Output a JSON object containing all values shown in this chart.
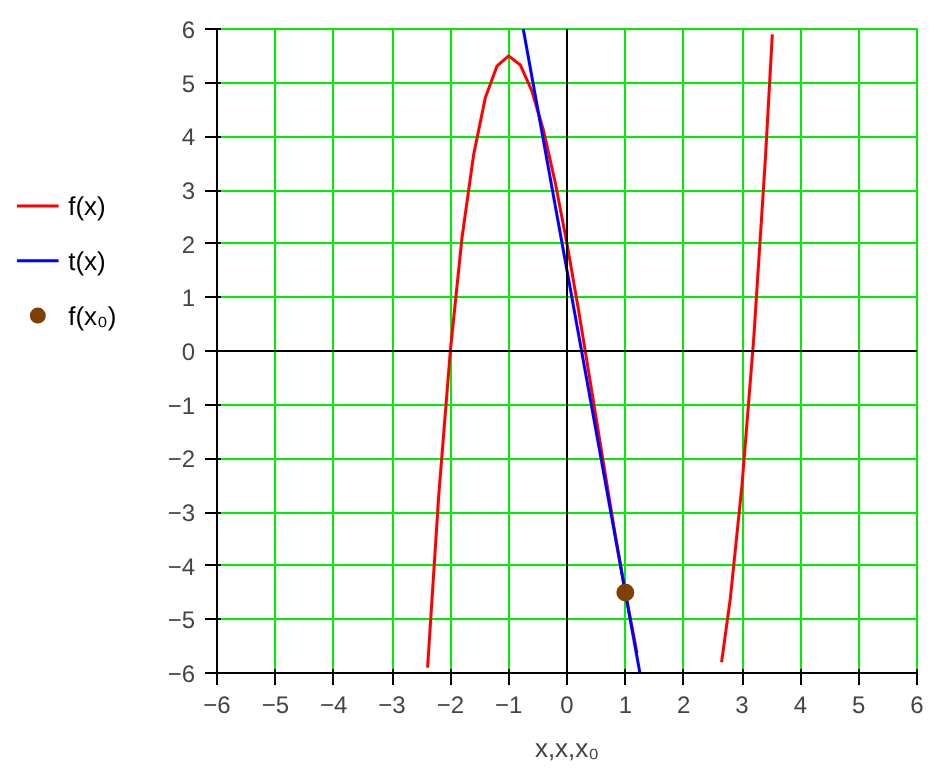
{
  "chart_data": {
    "type": "line",
    "xlabel": "x,x,x₀",
    "xlim": [
      -6,
      6
    ],
    "ylim": [
      -6,
      6
    ],
    "xticks": [
      -6,
      -5,
      -4,
      -3,
      -2,
      -1,
      0,
      1,
      2,
      3,
      4,
      5,
      6
    ],
    "yticks": [
      -6,
      -5,
      -4,
      -3,
      -2,
      -1,
      0,
      1,
      2,
      3,
      4,
      5,
      6
    ],
    "grid": true,
    "legend": "left",
    "line_style": "solid",
    "series": [
      {
        "name": "f(x)",
        "color": "#ff0000",
        "x": [
          -2.39,
          -2.2,
          -2.0,
          -1.8,
          -1.6,
          -1.4,
          -1.2,
          -1.0,
          -0.8,
          -0.6,
          -0.4,
          -0.2,
          0,
          0.2,
          0.4,
          0.6,
          0.8,
          1.0,
          1.2,
          1.3,
          2.65,
          2.8,
          3.0,
          3.2,
          3.4,
          3.52
        ],
        "values": [
          -5.9,
          -2.71,
          0,
          2.11,
          3.66,
          4.72,
          5.31,
          5.5,
          5.33,
          4.84,
          4.1,
          3.13,
          2,
          0.75,
          -0.58,
          -1.92,
          -3.25,
          -4.5,
          -5.63,
          null,
          -5.8,
          -4.61,
          -2.5,
          0.21,
          3.56,
          5.9
        ]
      },
      {
        "name": "t(x)",
        "color": "#0000ff",
        "x": [
          -0.75,
          1.25
        ],
        "values": [
          6,
          -6
        ]
      },
      {
        "name": "f(x₀)",
        "type": "scatter",
        "marker": "circle",
        "color": "#804000",
        "x": [
          1
        ],
        "values": [
          -4.5
        ]
      }
    ]
  }
}
